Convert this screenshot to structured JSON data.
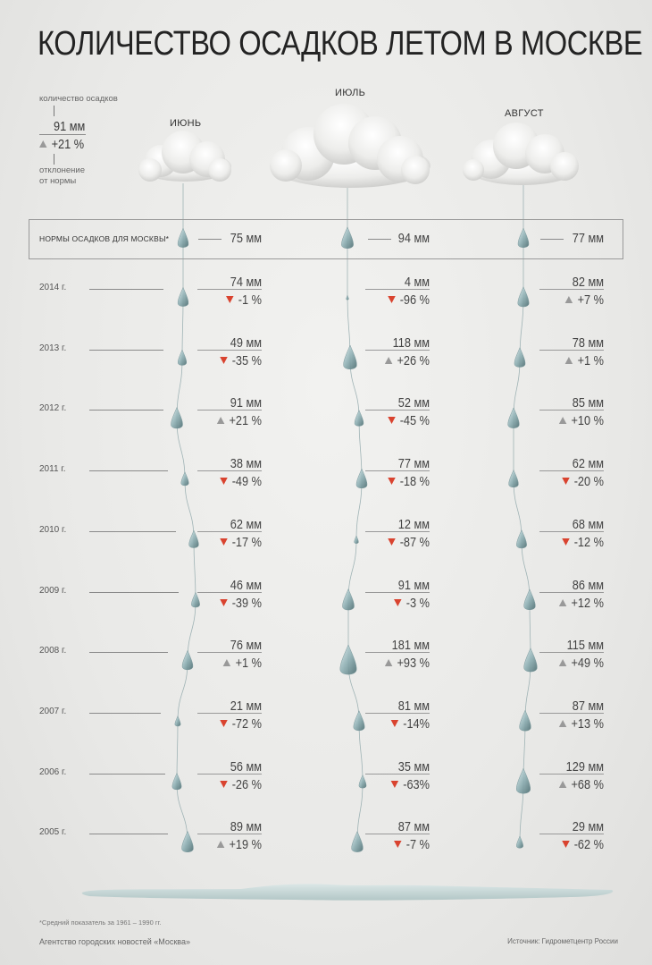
{
  "title": "КОЛИЧЕСТВО ОСАДКОВ ЛЕТОМ В МОСКВЕ",
  "legend": {
    "top_label": "количество осадков",
    "value": "91 мм",
    "deviation": "+21 %",
    "bottom_label_1": "отклонение",
    "bottom_label_2": "от нормы"
  },
  "norm_label": "НОРМЫ ОСАДКОВ ДЛЯ МОСКВЫ*",
  "footnote": "*Средний показатель за 1961 – 1990 гг.",
  "agency": "Агентство городских новостей «Москва»",
  "source": "Источник: Гидрометцентр России",
  "colors": {
    "decrease": "#d9432f",
    "increase": "#999999",
    "drop": "#9bb8bd"
  },
  "chart_data": {
    "type": "table",
    "unit": "мм",
    "months": [
      "ИЮНЬ",
      "ИЮЛЬ",
      "АВГУСТ"
    ],
    "norm": {
      "values": [
        75,
        94,
        77
      ],
      "labels": [
        "75 мм",
        "94 мм",
        "77 мм"
      ]
    },
    "years": [
      {
        "year": "2014 г.",
        "values": [
          74,
          4,
          82
        ],
        "labels": [
          "74 мм",
          "4 мм",
          "82 мм"
        ],
        "deviations": [
          "-1 %",
          "-96 %",
          "+7 %"
        ],
        "directions": [
          "down",
          "down",
          "up"
        ]
      },
      {
        "year": "2013 г.",
        "values": [
          49,
          118,
          78
        ],
        "labels": [
          "49 мм",
          "118 мм",
          "78 мм"
        ],
        "deviations": [
          "-35 %",
          "+26 %",
          "+1 %"
        ],
        "directions": [
          "down",
          "up",
          "up"
        ]
      },
      {
        "year": "2012 г.",
        "values": [
          91,
          52,
          85
        ],
        "labels": [
          "91 мм",
          "52 мм",
          "85 мм"
        ],
        "deviations": [
          "+21 %",
          "-45 %",
          "+10 %"
        ],
        "directions": [
          "up",
          "down",
          "up"
        ]
      },
      {
        "year": "2011 г.",
        "values": [
          38,
          77,
          62
        ],
        "labels": [
          "38 мм",
          "77 мм",
          "62 мм"
        ],
        "deviations": [
          "-49 %",
          "-18 %",
          "-20 %"
        ],
        "directions": [
          "down",
          "down",
          "down"
        ]
      },
      {
        "year": "2010 г.",
        "values": [
          62,
          12,
          68
        ],
        "labels": [
          "62 мм",
          "12 мм",
          "68 мм"
        ],
        "deviations": [
          "-17 %",
          "-87 %",
          "-12 %"
        ],
        "directions": [
          "down",
          "down",
          "down"
        ]
      },
      {
        "year": "2009 г.",
        "values": [
          46,
          91,
          86
        ],
        "labels": [
          "46 мм",
          "91 мм",
          "86 мм"
        ],
        "deviations": [
          "-39 %",
          "-3 %",
          "+12 %"
        ],
        "directions": [
          "down",
          "down",
          "up"
        ]
      },
      {
        "year": "2008 г.",
        "values": [
          76,
          181,
          115
        ],
        "labels": [
          "76 мм",
          "181 мм",
          "115 мм"
        ],
        "deviations": [
          "+1 %",
          "+93 %",
          "+49 %"
        ],
        "directions": [
          "up",
          "up",
          "up"
        ]
      },
      {
        "year": "2007 г.",
        "values": [
          21,
          81,
          87
        ],
        "labels": [
          "21 мм",
          "81 мм",
          "87 мм"
        ],
        "deviations": [
          "-72 %",
          "-14%",
          "+13 %"
        ],
        "directions": [
          "down",
          "down",
          "up"
        ]
      },
      {
        "year": "2006 г.",
        "values": [
          56,
          35,
          129
        ],
        "labels": [
          "56 мм",
          "35 мм",
          "129 мм"
        ],
        "deviations": [
          "-26 %",
          "-63%",
          "+68 %"
        ],
        "directions": [
          "down",
          "down",
          "up"
        ]
      },
      {
        "year": "2005 г.",
        "values": [
          89,
          87,
          29
        ],
        "labels": [
          "89 мм",
          "87 мм",
          "29 мм"
        ],
        "deviations": [
          "+19 %",
          "-7 %",
          "-62 %"
        ],
        "directions": [
          "up",
          "down",
          "down"
        ]
      }
    ]
  }
}
